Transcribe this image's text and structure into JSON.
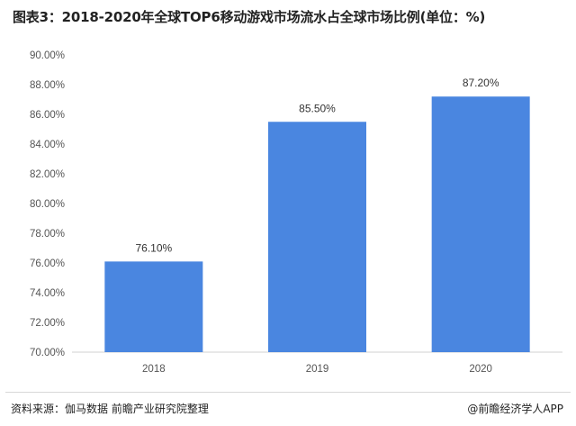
{
  "title": "图表3：2018-2020年全球TOP6移动游戏市场流水占全球市场比例(单位：%)",
  "footer": {
    "source": "资料来源：伽马数据 前瞻产业研究院整理",
    "credit": "@前瞻经济学人APP"
  },
  "colors": {
    "bar": "#4a86e0",
    "axis": "#d0d0d0"
  },
  "chart_data": {
    "type": "bar",
    "title": "图表3：2018-2020年全球TOP6移动游戏市场流水占全球市场比例(单位：%)",
    "xlabel": "",
    "ylabel": "",
    "categories": [
      "2018",
      "2019",
      "2020"
    ],
    "values": [
      76.1,
      85.5,
      87.2
    ],
    "value_labels": [
      "76.10%",
      "85.50%",
      "87.20%"
    ],
    "ylim": [
      70,
      90
    ],
    "yticks": [
      70,
      72,
      74,
      76,
      78,
      80,
      82,
      84,
      86,
      88,
      90
    ],
    "ytick_labels": [
      "70.00%",
      "72.00%",
      "74.00%",
      "76.00%",
      "78.00%",
      "80.00%",
      "82.00%",
      "84.00%",
      "86.00%",
      "88.00%",
      "90.00%"
    ],
    "grid": false,
    "legend": "none"
  }
}
